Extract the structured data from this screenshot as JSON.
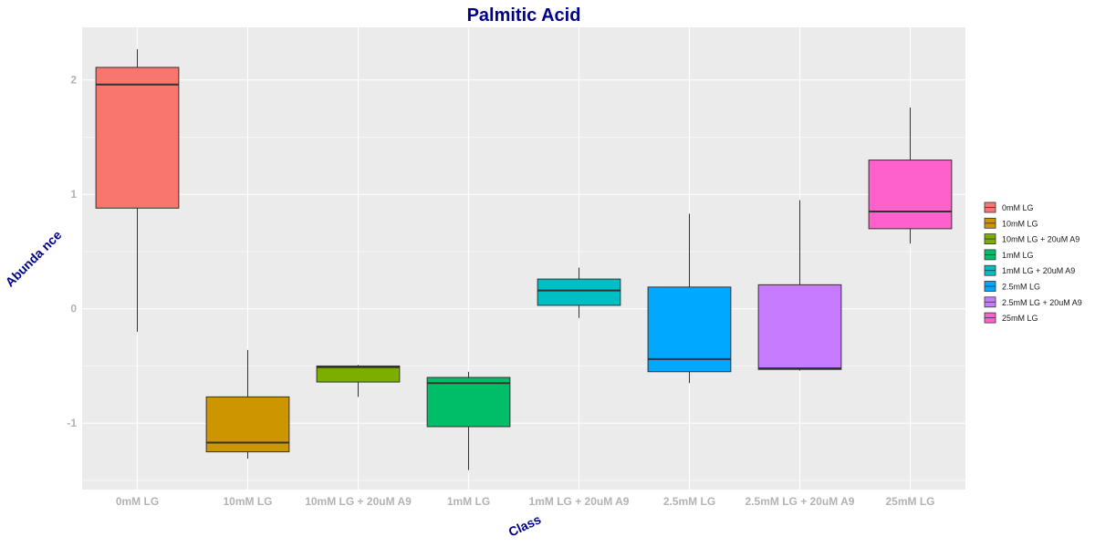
{
  "chart_data": {
    "type": "boxplot",
    "title": "Palmitic Acid",
    "xlabel": "Class",
    "ylabel": "Abunda nce",
    "categories": [
      "0mM LG",
      "10mM LG",
      "10mM LG + 20uM A9",
      "1mM LG",
      "1mM LG + 20uM A9",
      "2.5mM LG",
      "2.5mM LG + 20uM A9",
      "25mM LG"
    ],
    "boxes": [
      {
        "category": "0mM LG",
        "whisker_low": -0.2,
        "q1": 0.88,
        "median": 1.96,
        "q3": 2.11,
        "whisker_high": 2.27,
        "color": "#F8766D"
      },
      {
        "category": "10mM LG",
        "whisker_low": -1.31,
        "q1": -1.25,
        "median": -1.17,
        "q3": -0.77,
        "whisker_high": -0.36,
        "color": "#CD9600"
      },
      {
        "category": "10mM LG + 20uM A9",
        "whisker_low": -0.77,
        "q1": -0.64,
        "median": -0.51,
        "q3": -0.5,
        "whisker_high": -0.49,
        "color": "#7CAE00"
      },
      {
        "category": "1mM LG",
        "whisker_low": -1.41,
        "q1": -1.03,
        "median": -0.65,
        "q3": -0.6,
        "whisker_high": -0.55,
        "color": "#00BE67"
      },
      {
        "category": "1mM LG + 20uM A9",
        "whisker_low": -0.08,
        "q1": 0.03,
        "median": 0.16,
        "q3": 0.26,
        "whisker_high": 0.36,
        "color": "#00BFC4"
      },
      {
        "category": "2.5mM LG",
        "whisker_low": -0.65,
        "q1": -0.55,
        "median": -0.44,
        "q3": 0.19,
        "whisker_high": 0.83,
        "color": "#00A9FF"
      },
      {
        "category": "2.5mM LG + 20uM A9",
        "whisker_low": -0.54,
        "q1": -0.53,
        "median": -0.52,
        "q3": 0.21,
        "whisker_high": 0.95,
        "color": "#C77CFF"
      },
      {
        "category": "25mM LG",
        "whisker_low": 0.57,
        "q1": 0.7,
        "median": 0.85,
        "q3": 1.3,
        "whisker_high": 1.76,
        "color": "#FF61CC"
      }
    ],
    "yticks": [
      -1,
      0,
      1,
      2
    ],
    "ytick_labels": [
      "-1",
      "0",
      "1",
      "2"
    ],
    "ylim": [
      -1.58,
      2.46
    ],
    "grid": true,
    "legend": {
      "position": "right",
      "entries": [
        "0mM LG",
        "10mM LG",
        "10mM LG + 20uM A9",
        "1mM LG",
        "1mM LG + 20uM A9",
        "2.5mM LG",
        "2.5mM LG + 20uM A9",
        "25mM LG"
      ]
    },
    "colors": {
      "panel_background": "#EBEBEB",
      "grid_line": "#FFFFFF",
      "title_color": "#00008B",
      "axis_title_color": "#00008B",
      "tick_label_color": "#B3B3B3"
    }
  }
}
